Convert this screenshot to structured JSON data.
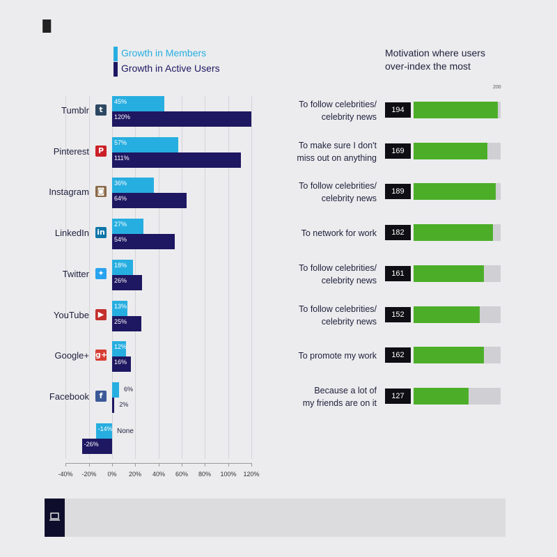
{
  "chart_data": [
    {
      "type": "bar",
      "orientation": "horizontal",
      "categories": [
        "Tumblr",
        "Pinterest",
        "Instagram",
        "LinkedIn",
        "Twitter",
        "YouTube",
        "Google+",
        "Facebook",
        "None"
      ],
      "series": [
        {
          "name": "Growth in Members",
          "color": "#27aee0",
          "values": [
            45,
            57,
            36,
            27,
            18,
            13,
            12,
            6,
            -14
          ],
          "labels": [
            "45%",
            "57%",
            "36%",
            "27%",
            "18%",
            "13%",
            "12%",
            "6%",
            "-14%"
          ]
        },
        {
          "name": "Growth in Active Users",
          "color": "#1e1761",
          "values": [
            120,
            111,
            64,
            54,
            26,
            25,
            16,
            2,
            -26
          ],
          "labels": [
            "120%",
            "111%",
            "64%",
            "54%",
            "26%",
            "25%",
            "16%",
            "2%",
            "-26%"
          ]
        }
      ],
      "xlim": [
        -40,
        120
      ],
      "ticks": [
        "-40%",
        "-20%",
        "0%",
        "20%",
        "40%",
        "60%",
        "80%",
        "100%",
        "120%"
      ],
      "grid": true,
      "legend": "top-left"
    },
    {
      "type": "bar",
      "orientation": "horizontal",
      "title": "Motivation where users over-index the most",
      "title_lines": [
        "Motivation where users",
        "over-index the most"
      ],
      "scale_max_label": "200",
      "xlim": [
        0,
        200
      ],
      "rows": [
        {
          "lines": [
            "To follow celebrities/",
            "celebrity news"
          ],
          "value": 194,
          "label": "194"
        },
        {
          "lines": [
            "To make sure I don't",
            "miss out on anything"
          ],
          "value": 169,
          "label": "169"
        },
        {
          "lines": [
            "To follow celebrities/",
            "celebrity news"
          ],
          "value": 189,
          "label": "189"
        },
        {
          "lines": [
            "To network for work"
          ],
          "value": 182,
          "label": "182"
        },
        {
          "lines": [
            "To follow celebrities/",
            "celebrity news"
          ],
          "value": 161,
          "label": "161"
        },
        {
          "lines": [
            "To follow celebrities/",
            "celebrity news"
          ],
          "value": 152,
          "label": "152"
        },
        {
          "lines": [
            "To promote my work"
          ],
          "value": 162,
          "label": "162"
        },
        {
          "lines": [
            "Because a lot of",
            "my friends are on it"
          ],
          "value": 127,
          "label": "127"
        }
      ],
      "colors": {
        "fill": "#4cae28",
        "track": "#cfcfd4",
        "score_box": "#0e0e14"
      }
    }
  ],
  "platform_icons": [
    {
      "name": "tumblr-icon",
      "glyph": "t",
      "bg": "#2c4762"
    },
    {
      "name": "pinterest-icon",
      "glyph": "P",
      "bg": "#cb2027"
    },
    {
      "name": "instagram-icon",
      "glyph": "◙",
      "bg": "#8a6a4a"
    },
    {
      "name": "linkedin-icon",
      "glyph": "in",
      "bg": "#0e76a8"
    },
    {
      "name": "twitter-icon",
      "glyph": "✦",
      "bg": "#2aa3ef"
    },
    {
      "name": "youtube-icon",
      "glyph": "▶",
      "bg": "#c4302b"
    },
    {
      "name": "google-plus-icon",
      "glyph": "g+",
      "bg": "#d73d32"
    },
    {
      "name": "facebook-icon",
      "glyph": "f",
      "bg": "#3b5998"
    },
    {
      "name": "none-icon",
      "glyph": "",
      "bg": "transparent"
    }
  ],
  "footer": {
    "icon": "laptop-icon"
  }
}
